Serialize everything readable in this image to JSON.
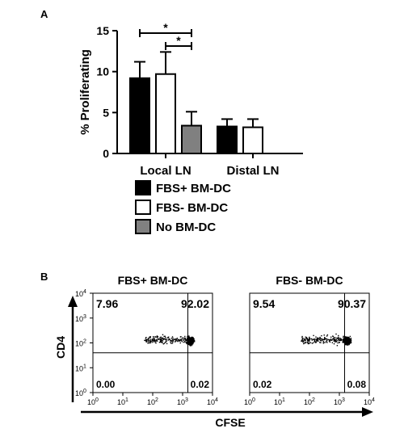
{
  "chart_data": [
    {
      "panel_label": "A",
      "type": "bar",
      "ylabel": "% Proliferating",
      "ylim": [
        0,
        15
      ],
      "yticks": [
        "0",
        "5",
        "10",
        "15"
      ],
      "categories": [
        "Local LN",
        "Distal LN"
      ],
      "series": [
        {
          "name": "FBS+ BM-DC",
          "color": "#000000",
          "values": [
            9.2,
            3.3
          ],
          "errors": [
            2.0,
            0.9
          ]
        },
        {
          "name": "FBS- BM-DC",
          "color": "#ffffff",
          "values": [
            9.7,
            3.2
          ],
          "errors": [
            2.7,
            1.0
          ]
        },
        {
          "name": "No BM-DC",
          "color": "#808080",
          "values": [
            3.4,
            null
          ],
          "errors": [
            1.7,
            null
          ]
        }
      ],
      "significance": [
        {
          "group": "Local LN",
          "from_series": 0,
          "to_series": 2,
          "label": "*"
        },
        {
          "group": "Local LN",
          "from_series": 1,
          "to_series": 2,
          "label": "*"
        }
      ],
      "legend_placement": "bottom",
      "grid": false
    },
    {
      "panel_label": "B",
      "type": "scatter",
      "xlabel": "CFSE",
      "ylabel": "CD4",
      "scale": "log",
      "axis_range": [
        1,
        10000
      ],
      "tick_labels": [
        {
          "base": "10",
          "exp": "0"
        },
        {
          "base": "10",
          "exp": "1"
        },
        {
          "base": "10",
          "exp": "2"
        },
        {
          "base": "10",
          "exp": "3"
        },
        {
          "base": "10",
          "exp": "4"
        }
      ],
      "gate": {
        "x": 1500,
        "y": 40
      },
      "plots": [
        {
          "title": "FBS+ BM-DC",
          "quadrants": {
            "upper_left": "7.96",
            "upper_right": "92.02",
            "lower_left": "0.00",
            "lower_right": "0.02"
          }
        },
        {
          "title": "FBS- BM-DC",
          "quadrants": {
            "upper_left": "9.54",
            "upper_right": "90.37",
            "lower_left": "0.02",
            "lower_right": "0.08"
          }
        }
      ]
    }
  ]
}
